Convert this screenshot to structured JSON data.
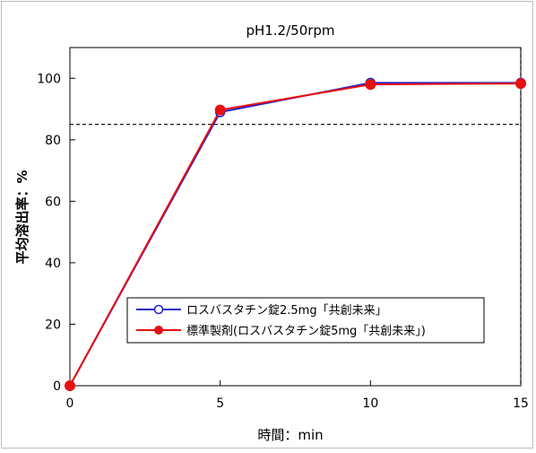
{
  "chart_data": {
    "type": "line",
    "title": "pH1.2/50rpm",
    "xlabel": "時間：min",
    "ylabel": "平均溶出率：%",
    "x": [
      0,
      5,
      10,
      15
    ],
    "xlim": [
      0,
      15
    ],
    "ylim": [
      0,
      110
    ],
    "x_ticks": [
      0,
      5,
      10,
      15
    ],
    "y_ticks": [
      0,
      20,
      40,
      60,
      80,
      100
    ],
    "x_tick_labels": [
      "0",
      "5",
      "10",
      "15"
    ],
    "y_tick_labels": [
      "0",
      "20",
      "40",
      "60",
      "80",
      "100"
    ],
    "series": [
      {
        "name": "ロスバスタチン錠2.5mg「共創未来」",
        "values": [
          0,
          89,
          98.5,
          98.5
        ],
        "color": "#1f1fd0",
        "marker": "open-circle"
      },
      {
        "name": "標準製剤(ロスバスタチン錠5mg「共創未来」)",
        "values": [
          0,
          89.7,
          98,
          98.3
        ],
        "color": "#e81010",
        "marker": "filled-circle"
      }
    ],
    "reference_lines": {
      "horizontal_y": 85,
      "vertical_x": 15,
      "style": "dashed"
    },
    "legend_position": "bottom-center",
    "grid": false
  }
}
